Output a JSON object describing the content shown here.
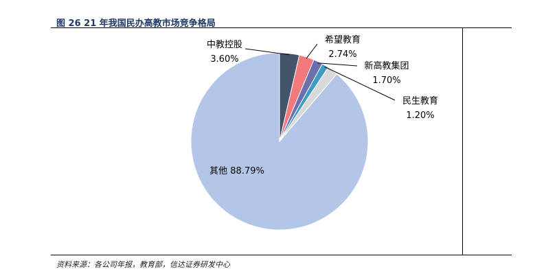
{
  "figure": {
    "title": "图 26  21 年我国民办高教市场竞争格局",
    "source": "资料来源：各公司年报，教育部，信达证券研发中心"
  },
  "chart_data": {
    "type": "pie",
    "title": "",
    "slices": [
      {
        "name": "中教控股",
        "value": 3.6,
        "label": "3.60%",
        "color": "#44546a"
      },
      {
        "name": "希望教育",
        "value": 2.74,
        "label": "2.74%",
        "color": "#f27a7c"
      },
      {
        "name": "新高教集团",
        "value": 1.7,
        "label": "1.70%",
        "color": "#6a6fb0"
      },
      {
        "name": "民生教育",
        "value": 1.2,
        "label": "1.20%",
        "color": "#3e9bc4"
      },
      {
        "name": "",
        "value": 1.97,
        "label": "",
        "color": "#d9d9d9"
      },
      {
        "name": "其他",
        "value": 88.79,
        "label": "88.79%",
        "color": "#b4c6e7"
      }
    ],
    "legend": "none"
  }
}
